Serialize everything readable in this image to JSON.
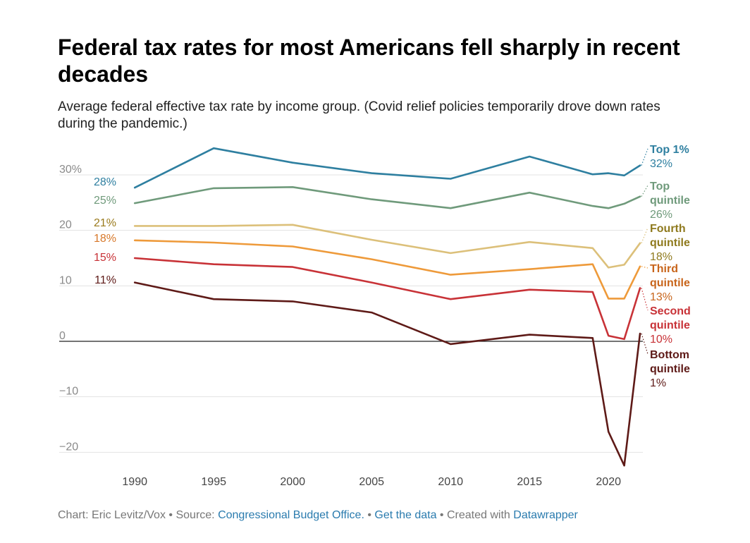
{
  "header": {
    "title": "Federal tax rates for most Americans fell sharply in recent decades",
    "subtitle": "Average federal effective tax rate by income group. (Covid relief policies temporarily drove down rates during the pandemic.)"
  },
  "footer": {
    "credit": "Chart: Eric Levitz/Vox",
    "source_prefix": "Source:",
    "source_link": "Congressional Budget Office.",
    "data_link": "Get the data",
    "created_prefix": "Created with",
    "created_link": "Datawrapper",
    "bullet": "•"
  },
  "chart_data": {
    "type": "line",
    "title": "Federal tax rates for most Americans fell sharply in recent decades",
    "xlabel": "",
    "ylabel": "",
    "xlim": [
      1987,
      2022
    ],
    "ylim": [
      -23,
      37
    ],
    "x_ticks": [
      1990,
      1995,
      2000,
      2005,
      2010,
      2015,
      2020
    ],
    "y_ticks": [
      {
        "value": 30,
        "label": "30%"
      },
      {
        "value": 20,
        "label": "20"
      },
      {
        "value": 10,
        "label": "10"
      },
      {
        "value": 0,
        "label": "0"
      },
      {
        "value": -10,
        "label": "−10"
      },
      {
        "value": -20,
        "label": "−20"
      }
    ],
    "grid": true,
    "series": [
      {
        "name": "Top 1%",
        "label_lines": [
          "Top 1%"
        ],
        "end_value_label": "32%",
        "start_label": "28%",
        "color": "#2e7fa0",
        "x": [
          1990,
          1995,
          2000,
          2005,
          2010,
          2015,
          2019,
          2020,
          2021,
          2022
        ],
        "values": [
          27.7,
          34.8,
          32.2,
          30.3,
          29.3,
          33.3,
          30.1,
          30.3,
          29.9,
          31.7
        ]
      },
      {
        "name": "Top quintile",
        "label_lines": [
          "Top",
          "quintile"
        ],
        "end_value_label": "26%",
        "start_label": "25%",
        "color": "#6f9a7b",
        "x": [
          1990,
          1995,
          2000,
          2005,
          2010,
          2015,
          2019,
          2020,
          2021,
          2022
        ],
        "values": [
          24.9,
          27.6,
          27.8,
          25.6,
          24.0,
          26.8,
          24.4,
          24.0,
          24.8,
          26.1
        ]
      },
      {
        "name": "Fourth quintile",
        "label_lines": [
          "Fourth",
          "quintile"
        ],
        "end_value_label": "18%",
        "start_label": "21%",
        "color": "#dcc07a",
        "x": [
          1990,
          1995,
          2000,
          2005,
          2010,
          2015,
          2019,
          2020,
          2021,
          2022
        ],
        "values": [
          20.8,
          20.8,
          21.0,
          18.3,
          15.9,
          17.9,
          16.8,
          13.3,
          13.8,
          17.7
        ]
      },
      {
        "name": "Third quintile",
        "label_lines": [
          "Third",
          "quintile"
        ],
        "end_value_label": "13%",
        "start_label": "18%",
        "color": "#ee9a3a",
        "x": [
          1990,
          1995,
          2000,
          2005,
          2010,
          2015,
          2019,
          2020,
          2021,
          2022
        ],
        "values": [
          18.2,
          17.8,
          17.1,
          14.8,
          12.0,
          13.0,
          13.9,
          7.7,
          7.7,
          13.5
        ]
      },
      {
        "name": "Second quintile",
        "label_lines": [
          "Second",
          "quintile"
        ],
        "end_value_label": "10%",
        "start_label": "15%",
        "color": "#c83237",
        "x": [
          1990,
          1995,
          2000,
          2005,
          2010,
          2015,
          2019,
          2020,
          2021,
          2022
        ],
        "values": [
          15.0,
          13.9,
          13.4,
          10.6,
          7.6,
          9.3,
          8.9,
          1.0,
          0.4,
          9.6
        ]
      },
      {
        "name": "Bottom quintile",
        "label_lines": [
          "Bottom",
          "quintile"
        ],
        "end_value_label": "1%",
        "start_label": "11%",
        "color": "#5e1a17",
        "x": [
          1990,
          1995,
          2000,
          2005,
          2010,
          2015,
          2019,
          2020,
          2021,
          2022
        ],
        "values": [
          10.6,
          7.6,
          7.2,
          5.2,
          -0.5,
          1.2,
          0.6,
          -16.3,
          -22.4,
          1.4
        ]
      }
    ],
    "start_label_colors": [
      "#2e7fa0",
      "#6f9a7b",
      "#9a7a1c",
      "#d7782a",
      "#c83237",
      "#5e1a17"
    ],
    "end_label_colors": [
      "#2e7fa0",
      "#6f9a7b",
      "#8f7a1e",
      "#c8651b",
      "#c83237",
      "#5e1a17"
    ]
  }
}
